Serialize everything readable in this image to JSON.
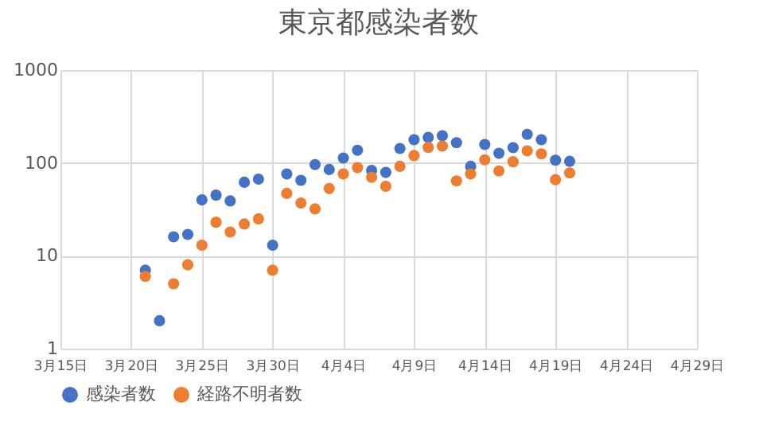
{
  "chart_data": {
    "type": "scatter",
    "title": "東京都感染者数",
    "x": [
      "--03-21",
      "--03-22",
      "--03-23",
      "--03-24",
      "--03-25",
      "--03-26",
      "--03-27",
      "--03-28",
      "--03-29",
      "--03-30",
      "--03-31",
      "--04-01",
      "--04-02",
      "--04-03",
      "--04-04",
      "--04-05",
      "--04-06",
      "--04-07",
      "--04-08",
      "--04-09",
      "--04-10",
      "--04-11",
      "--04-12",
      "--04-13",
      "--04-14",
      "--04-15",
      "--04-16",
      "--04-17",
      "--04-18",
      "--04-19",
      "--04-20"
    ],
    "series": [
      {
        "name": "感染者数",
        "color": "#4472c4",
        "values": [
          7,
          2,
          16,
          17,
          40,
          45,
          39,
          62,
          67,
          13,
          76,
          65,
          96,
          85,
          113,
          137,
          83,
          79,
          143,
          178,
          188,
          196,
          165,
          92,
          158,
          127,
          146,
          203,
          178,
          107,
          104
        ]
      },
      {
        "name": "経路不明者数",
        "color": "#ed7d31",
        "values": [
          6,
          null,
          5,
          8,
          13,
          23,
          18,
          22,
          25,
          7,
          47,
          37,
          32,
          53,
          76,
          89,
          70,
          56,
          92,
          120,
          147,
          152,
          64,
          76,
          108,
          82,
          103,
          135,
          125,
          66,
          78
        ]
      }
    ],
    "log": true,
    "ylim": [
      1,
      1000
    ],
    "yticks": [
      1,
      10,
      100,
      1000
    ],
    "xlim": [
      "--03-15",
      "--04-29"
    ],
    "xticks": [
      {
        "value": "--03-15",
        "label": "3月15日"
      },
      {
        "value": "--03-20",
        "label": "3月20日"
      },
      {
        "value": "--03-25",
        "label": "3月25日"
      },
      {
        "value": "--03-30",
        "label": "3月30日"
      },
      {
        "value": "--04-04",
        "label": "4月4日"
      },
      {
        "value": "--04-09",
        "label": "4月9日"
      },
      {
        "value": "--04-14",
        "label": "4月14日"
      },
      {
        "value": "--04-19",
        "label": "4月19日"
      },
      {
        "value": "--04-24",
        "label": "4月24日"
      },
      {
        "value": "--04-29",
        "label": "4月29日"
      }
    ],
    "grid": true,
    "legend": "bottom",
    "marker": "circle"
  }
}
